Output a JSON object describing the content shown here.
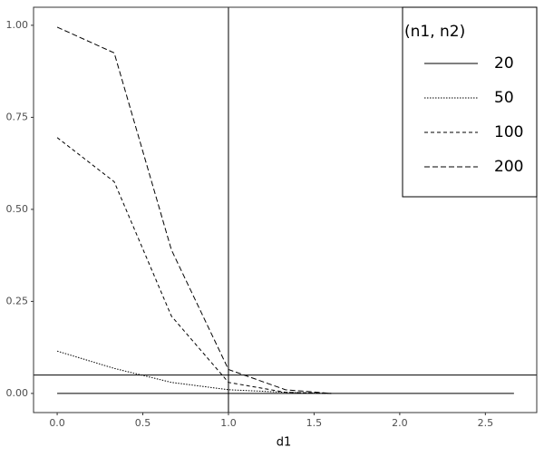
{
  "chart_data": {
    "type": "line",
    "x_label": "d1",
    "x": [
      0,
      0.333,
      0.667,
      1,
      1.333,
      1.6,
      2,
      2.333,
      2.667
    ],
    "series": [
      {
        "name": "20",
        "color": "#000000",
        "dash": "solid",
        "values": [
          0,
          0,
          0,
          0,
          0,
          0,
          0,
          0,
          0
        ]
      },
      {
        "name": "50",
        "color": "#000000",
        "dash": "dotted",
        "values": [
          0.115,
          0.068,
          0.03,
          0.01,
          0.003,
          0,
          null,
          null,
          null
        ]
      },
      {
        "name": "100",
        "color": "#000000",
        "dash": "dashed",
        "values": [
          0.695,
          0.575,
          0.21,
          0.03,
          0.003,
          0,
          null,
          null,
          null
        ]
      },
      {
        "name": "200",
        "color": "#000000",
        "dash": "longdash",
        "values": [
          0.995,
          0.925,
          0.39,
          0.065,
          0.01,
          0,
          null,
          null,
          null
        ]
      }
    ],
    "legend_title": "(n1, n2)",
    "legend_position": "top-right",
    "hline": 0.05,
    "vline": 1,
    "xlim": [
      -0.138,
      2.8
    ],
    "ylim": [
      -0.052,
      1.049
    ],
    "xticks": [
      {
        "value": 0,
        "label": "0.0"
      },
      {
        "value": 0.5,
        "label": "0.5"
      },
      {
        "value": 1,
        "label": "1.0"
      },
      {
        "value": 1.5,
        "label": "1.5"
      },
      {
        "value": 2,
        "label": "2.0"
      },
      {
        "value": 2.5,
        "label": "2.5"
      }
    ],
    "yticks": [
      {
        "value": 0,
        "label": "0.00"
      },
      {
        "value": 0.25,
        "label": "0.25"
      },
      {
        "value": 0.5,
        "label": "0.50"
      },
      {
        "value": 0.75,
        "label": "0.75"
      },
      {
        "value": 1,
        "label": "1.00"
      }
    ],
    "grid": false
  }
}
